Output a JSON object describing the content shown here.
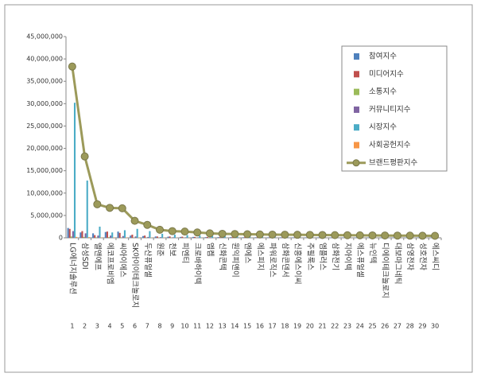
{
  "chart_data": {
    "type": "bar_line",
    "categories": [
      "LG에너지솔루션",
      "삼성SDI",
      "엘앤에프",
      "에코프로비엠",
      "씨아이에스",
      "SK아이이테크놀로지",
      "두산퓨얼셀",
      "원준",
      "천보",
      "피엔티",
      "크로바하이텍",
      "엠켐",
      "신화콘텍",
      "원익피앤이",
      "엔에스",
      "에스피지",
      "파워로직스",
      "삼화콘덴서",
      "신흥에스이씨",
      "주필룩스",
      "엠플러스",
      "삼화전기",
      "지아이텍",
      "에스퓨얼셀",
      "뉴인텍",
      "디에이테크놀로지",
      "대보마그네틱",
      "삼영전자",
      "성호전자",
      "에스씨디"
    ],
    "ranks": [
      1,
      2,
      3,
      4,
      5,
      6,
      7,
      8,
      9,
      10,
      11,
      12,
      13,
      14,
      15,
      16,
      17,
      18,
      19,
      20,
      21,
      22,
      23,
      24,
      25,
      26,
      27,
      28,
      29,
      30
    ],
    "series": [
      {
        "name": "참여지수",
        "color": "#4f81bd",
        "values": [
          2200000,
          1200000,
          1000000,
          1300000,
          1400000,
          500000,
          400000,
          300000,
          250000,
          200000,
          200000,
          150000,
          150000,
          150000,
          120000,
          120000,
          110000,
          110000,
          100000,
          100000,
          100000,
          90000,
          90000,
          90000,
          80000,
          80000,
          80000,
          70000,
          70000,
          70000
        ]
      },
      {
        "name": "미디어지수",
        "color": "#c0504d",
        "values": [
          2000000,
          1500000,
          600000,
          1400000,
          1100000,
          700000,
          500000,
          300000,
          300000,
          250000,
          200000,
          200000,
          150000,
          150000,
          150000,
          120000,
          120000,
          100000,
          100000,
          100000,
          90000,
          90000,
          80000,
          80000,
          80000,
          70000,
          70000,
          60000,
          60000,
          60000
        ]
      },
      {
        "name": "소통지수",
        "color": "#9bbb59",
        "values": [
          300000,
          200000,
          100000,
          150000,
          100000,
          80000,
          60000,
          50000,
          50000,
          40000,
          40000,
          40000,
          30000,
          30000,
          30000,
          30000,
          30000,
          30000,
          20000,
          20000,
          20000,
          20000,
          20000,
          20000,
          20000,
          20000,
          20000,
          20000,
          20000,
          20000
        ]
      },
      {
        "name": "커뮤니티지수",
        "color": "#8064a2",
        "values": [
          1500000,
          1000000,
          500000,
          500000,
          400000,
          300000,
          200000,
          150000,
          120000,
          110000,
          100000,
          90000,
          80000,
          80000,
          70000,
          70000,
          60000,
          60000,
          60000,
          50000,
          50000,
          50000,
          50000,
          40000,
          40000,
          40000,
          40000,
          40000,
          30000,
          30000
        ]
      },
      {
        "name": "시장지수",
        "color": "#4bacc6",
        "values": [
          30200000,
          12800000,
          2500000,
          1200000,
          1700000,
          2000000,
          1500000,
          900000,
          700000,
          600000,
          500000,
          400000,
          350000,
          300000,
          300000,
          250000,
          250000,
          250000,
          200000,
          200000,
          200000,
          150000,
          150000,
          150000,
          120000,
          120000,
          100000,
          100000,
          100000,
          100000
        ]
      },
      {
        "name": "사회공헌지수",
        "color": "#f79646",
        "values": [
          200000,
          150000,
          100000,
          100000,
          100000,
          80000,
          60000,
          50000,
          40000,
          40000,
          30000,
          30000,
          30000,
          30000,
          30000,
          20000,
          20000,
          20000,
          20000,
          20000,
          20000,
          20000,
          20000,
          20000,
          10000,
          10000,
          10000,
          10000,
          10000,
          10000
        ]
      },
      {
        "name": "브랜드평판지수",
        "color": "#9c9a5a",
        "type": "line",
        "values": [
          38300000,
          18200000,
          7500000,
          6700000,
          6600000,
          3800000,
          2900000,
          1800000,
          1500000,
          1400000,
          1200000,
          1000000,
          900000,
          850000,
          800000,
          750000,
          720000,
          700000,
          680000,
          650000,
          630000,
          600000,
          580000,
          560000,
          540000,
          520000,
          500000,
          480000,
          460000,
          440000
        ]
      }
    ],
    "ylim": [
      0,
      45000000
    ],
    "yticks": [
      0,
      {
        "value": 5000000,
        "label": "5,000,000"
      },
      {
        "value": 10000000,
        "label": "10,000,000"
      },
      {
        "value": 15000000,
        "label": "15,000,000"
      },
      {
        "value": 20000000,
        "label": "20,000,000"
      },
      {
        "value": 25000000,
        "label": "25,000,000"
      },
      {
        "value": 30000000,
        "label": "30,000,000"
      },
      {
        "value": 35000000,
        "label": "35,000,000"
      },
      {
        "value": 40000000,
        "label": "40,000,000"
      },
      {
        "value": 45000000,
        "label": "45,000,000"
      }
    ],
    "grid": false,
    "legend": "upper right"
  }
}
